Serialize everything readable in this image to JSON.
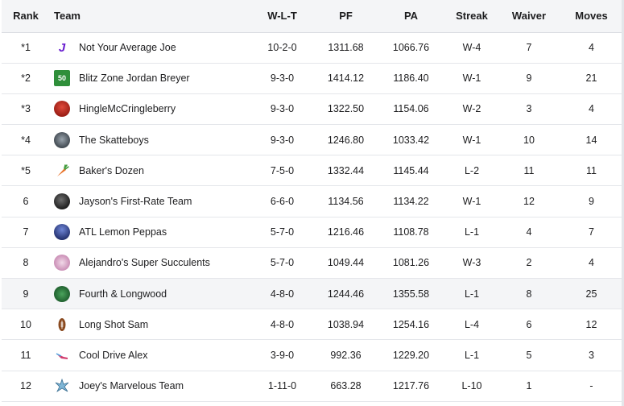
{
  "headers": {
    "rank": "Rank",
    "team": "Team",
    "wlt": "W-L-T",
    "pf": "PF",
    "pa": "PA",
    "streak": "Streak",
    "waiver": "Waiver",
    "moves": "Moves"
  },
  "colors": {
    "header_bg": "#f4f5f7",
    "highlight_row_bg": "#f4f5f7",
    "letter_logo": "#6a1fd0"
  },
  "rows": [
    {
      "rank": "*1",
      "team": "Not Your Average Joe",
      "wlt": "10-2-0",
      "pf": "1311.68",
      "pa": "1066.76",
      "streak": "W-4",
      "waiver": "7",
      "moves": "4",
      "logo_icon": "letter-j-icon",
      "logo_text": "J"
    },
    {
      "rank": "*2",
      "team": "Blitz Zone Jordan Breyer",
      "wlt": "9-3-0",
      "pf": "1414.12",
      "pa": "1186.40",
      "streak": "W-1",
      "waiver": "9",
      "moves": "21",
      "logo_icon": "50-badge-icon",
      "logo_text": "50"
    },
    {
      "rank": "*3",
      "team": "HingleMcCringleberry",
      "wlt": "9-3-0",
      "pf": "1322.50",
      "pa": "1154.06",
      "streak": "W-2",
      "waiver": "3",
      "moves": "4",
      "logo_icon": "red-avatar-icon",
      "logo_text": ""
    },
    {
      "rank": "*4",
      "team": "The Skatteboys",
      "wlt": "9-3-0",
      "pf": "1246.80",
      "pa": "1033.42",
      "streak": "W-1",
      "waiver": "10",
      "moves": "14",
      "logo_icon": "photo-avatar-icon",
      "logo_text": ""
    },
    {
      "rank": "*5",
      "team": "Baker's Dozen",
      "wlt": "7-5-0",
      "pf": "1332.44",
      "pa": "1145.44",
      "streak": "L-2",
      "waiver": "11",
      "moves": "11",
      "logo_icon": "carrot-icon",
      "logo_text": ""
    },
    {
      "rank": "6",
      "team": "Jayson's First-Rate Team",
      "wlt": "6-6-0",
      "pf": "1134.56",
      "pa": "1134.22",
      "streak": "W-1",
      "waiver": "12",
      "moves": "9",
      "logo_icon": "dark-avatar-icon",
      "logo_text": ""
    },
    {
      "rank": "7",
      "team": "ATL Lemon Peppas",
      "wlt": "5-7-0",
      "pf": "1216.46",
      "pa": "1108.78",
      "streak": "L-1",
      "waiver": "4",
      "moves": "7",
      "logo_icon": "city-night-icon",
      "logo_text": ""
    },
    {
      "rank": "8",
      "team": "Alejandro's Super Succulents",
      "wlt": "5-7-0",
      "pf": "1049.44",
      "pa": "1081.26",
      "streak": "W-3",
      "waiver": "2",
      "moves": "4",
      "logo_icon": "succulent-icon",
      "logo_text": ""
    },
    {
      "rank": "9",
      "team": "Fourth & Longwood",
      "wlt": "4-8-0",
      "pf": "1244.46",
      "pa": "1355.58",
      "streak": "L-1",
      "waiver": "8",
      "moves": "25",
      "logo_icon": "green-crest-icon",
      "logo_text": "",
      "highlight": true
    },
    {
      "rank": "10",
      "team": "Long Shot Sam",
      "wlt": "4-8-0",
      "pf": "1038.94",
      "pa": "1254.16",
      "streak": "L-4",
      "waiver": "6",
      "moves": "12",
      "logo_icon": "football-icon",
      "logo_text": ""
    },
    {
      "rank": "11",
      "team": "Cool Drive Alex",
      "wlt": "3-9-0",
      "pf": "992.36",
      "pa": "1229.20",
      "streak": "L-1",
      "waiver": "5",
      "moves": "3",
      "logo_icon": "shoe-icon",
      "logo_text": ""
    },
    {
      "rank": "12",
      "team": "Joey's Marvelous Team",
      "wlt": "1-11-0",
      "pf": "663.28",
      "pa": "1217.76",
      "streak": "L-10",
      "waiver": "1",
      "moves": "-",
      "logo_icon": "spiky-star-icon",
      "logo_text": ""
    }
  ]
}
